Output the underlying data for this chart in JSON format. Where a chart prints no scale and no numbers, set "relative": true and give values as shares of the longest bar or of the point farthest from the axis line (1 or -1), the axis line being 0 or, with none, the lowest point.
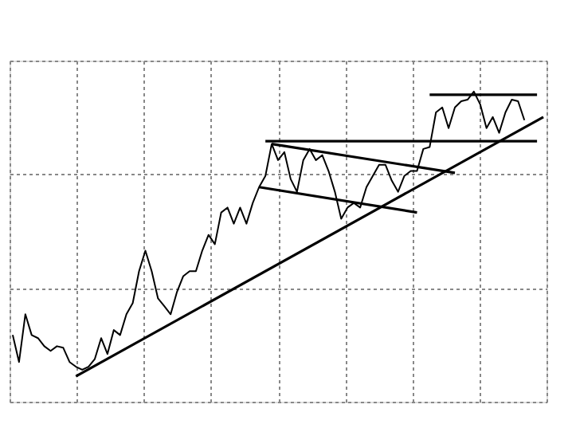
{
  "chart_data": {
    "type": "line",
    "relative": true,
    "grid": true,
    "categories": [
      null,
      null,
      null,
      null,
      null,
      null,
      null,
      null,
      null,
      null,
      null,
      null,
      null,
      null,
      null,
      null,
      null,
      null,
      null,
      null,
      null,
      null,
      null,
      null,
      null,
      null,
      null,
      null,
      null,
      null,
      null,
      null,
      null,
      null,
      null,
      null,
      null,
      null,
      null,
      null,
      null,
      null,
      null,
      null,
      null,
      null,
      null,
      null,
      null,
      null,
      null,
      null,
      null,
      null,
      null,
      null,
      null,
      null,
      null,
      null,
      null,
      null,
      null,
      null,
      null,
      null,
      null,
      null,
      null,
      null,
      null,
      null,
      null,
      null,
      null,
      null,
      null,
      null,
      null,
      null,
      null,
      null,
      null,
      null,
      null
    ],
    "series": [
      {
        "color": "#000000",
        "values": [
          0.215,
          0.128,
          0.282,
          0.215,
          0.205,
          0.179,
          0.164,
          0.179,
          0.174,
          0.128,
          0.113,
          0.103,
          0.113,
          0.138,
          0.205,
          0.154,
          0.231,
          0.215,
          0.282,
          0.318,
          0.421,
          0.487,
          0.421,
          0.333,
          0.308,
          0.282,
          0.354,
          0.405,
          0.421,
          0.421,
          0.487,
          0.538,
          0.508,
          0.61,
          0.626,
          0.574,
          0.626,
          0.574,
          0.641,
          0.692,
          0.728,
          0.831,
          0.779,
          0.805,
          0.718,
          0.677,
          0.779,
          0.815,
          0.779,
          0.795,
          0.744,
          0.677,
          0.59,
          0.626,
          0.641,
          0.626,
          0.692,
          0.728,
          0.764,
          0.764,
          0.713,
          0.677,
          0.728,
          0.744,
          0.744,
          0.815,
          0.821,
          0.933,
          0.949,
          0.882,
          0.949,
          0.969,
          0.974,
          1.0,
          0.959,
          0.882,
          0.918,
          0.867,
          0.933,
          0.974,
          0.969,
          0.908,
          null,
          null,
          null
        ]
      },
      {
        "type": "line",
        "color": "#000000",
        "values": [
          null,
          null,
          null,
          null,
          null,
          null,
          null,
          null,
          null,
          null,
          0.082,
          null,
          null,
          null,
          null,
          null,
          null,
          null,
          null,
          null,
          null,
          null,
          null,
          null,
          null,
          null,
          null,
          null,
          null,
          null,
          null,
          null,
          null,
          null,
          null,
          null,
          null,
          null,
          null,
          null,
          null,
          null,
          null,
          null,
          null,
          null,
          null,
          null,
          null,
          null,
          null,
          null,
          null,
          null,
          null,
          null,
          null,
          null,
          null,
          null,
          null,
          null,
          null,
          null,
          null,
          null,
          null,
          null,
          null,
          null,
          null,
          null,
          null,
          null,
          null,
          null,
          null,
          null,
          null,
          null,
          null,
          null,
          null,
          null,
          0.918
        ]
      },
      {
        "type": "line",
        "color": "#000000",
        "values": [
          null,
          null,
          null,
          null,
          null,
          null,
          null,
          null,
          null,
          null,
          null,
          null,
          null,
          null,
          null,
          null,
          null,
          null,
          null,
          null,
          null,
          null,
          null,
          null,
          null,
          null,
          null,
          null,
          null,
          null,
          null,
          null,
          null,
          null,
          null,
          null,
          null,
          null,
          null,
          null,
          null,
          null,
          null,
          null,
          null,
          null,
          null,
          null,
          null,
          null,
          null,
          null,
          null,
          null,
          null,
          null,
          null,
          null,
          null,
          null,
          null,
          null,
          null,
          null,
          null,
          null,
          0.99,
          null,
          null,
          null,
          null,
          null,
          null,
          null,
          null,
          null,
          null,
          null,
          null,
          null,
          null,
          null,
          null,
          0.99,
          null
        ]
      },
      {
        "type": "line",
        "color": "#000000",
        "values": [
          null,
          null,
          null,
          null,
          null,
          null,
          null,
          null,
          null,
          null,
          null,
          null,
          null,
          null,
          null,
          null,
          null,
          null,
          null,
          null,
          null,
          null,
          null,
          null,
          null,
          null,
          null,
          null,
          null,
          null,
          null,
          null,
          null,
          null,
          null,
          null,
          null,
          null,
          null,
          null,
          0.84,
          null,
          null,
          null,
          null,
          null,
          null,
          null,
          null,
          null,
          null,
          null,
          null,
          null,
          null,
          null,
          null,
          null,
          null,
          null,
          null,
          null,
          null,
          null,
          null,
          null,
          null,
          null,
          null,
          null,
          null,
          null,
          null,
          null,
          null,
          null,
          null,
          null,
          null,
          null,
          null,
          null,
          null,
          0.84,
          null
        ]
      },
      {
        "type": "line",
        "color": "#000000",
        "values": [
          null,
          null,
          null,
          null,
          null,
          null,
          null,
          null,
          null,
          null,
          null,
          null,
          null,
          null,
          null,
          null,
          null,
          null,
          null,
          null,
          null,
          null,
          null,
          null,
          null,
          null,
          null,
          null,
          null,
          null,
          null,
          null,
          null,
          null,
          null,
          null,
          null,
          null,
          null,
          null,
          null,
          0.831,
          null,
          null,
          null,
          null,
          null,
          null,
          null,
          null,
          null,
          null,
          null,
          null,
          null,
          null,
          null,
          null,
          null,
          null,
          null,
          null,
          null,
          null,
          null,
          null,
          null,
          null,
          null,
          null,
          0.738,
          null,
          null,
          null,
          null,
          null,
          null,
          null,
          null,
          null,
          null,
          null,
          null,
          null,
          null
        ]
      },
      {
        "type": "line",
        "color": "#000000",
        "values": [
          null,
          null,
          null,
          null,
          null,
          null,
          null,
          null,
          null,
          null,
          null,
          null,
          null,
          null,
          null,
          null,
          null,
          null,
          null,
          null,
          null,
          null,
          null,
          null,
          null,
          null,
          null,
          null,
          null,
          null,
          null,
          null,
          null,
          null,
          null,
          null,
          null,
          null,
          null,
          0.692,
          null,
          null,
          null,
          null,
          null,
          null,
          null,
          null,
          null,
          null,
          null,
          null,
          null,
          null,
          null,
          null,
          null,
          null,
          null,
          null,
          null,
          null,
          null,
          null,
          0.61,
          null,
          null,
          null,
          null,
          null,
          null,
          null,
          null,
          null,
          null,
          null,
          null,
          null,
          null,
          null,
          null,
          null,
          null,
          null,
          null
        ]
      }
    ]
  }
}
